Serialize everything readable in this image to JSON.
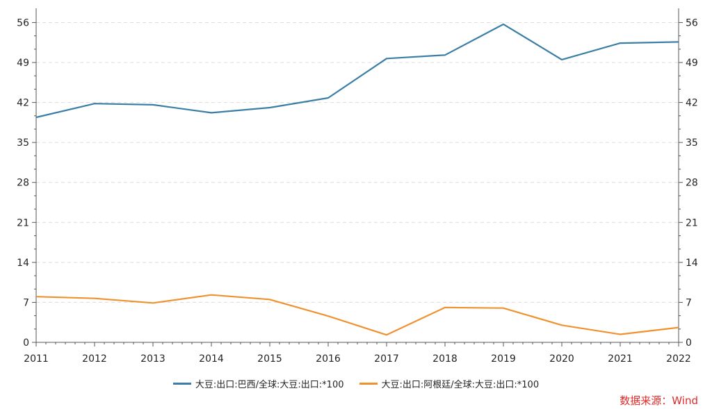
{
  "chart_data": {
    "type": "line",
    "x": [
      "2011",
      "2012",
      "2013",
      "2014",
      "2015",
      "2016",
      "2017",
      "2018",
      "2019",
      "2020",
      "2021",
      "2022"
    ],
    "series": [
      {
        "name": "大豆:出口:巴西/全球:大豆:出口:*100",
        "color": "#3a7ea6",
        "values": [
          39.4,
          41.8,
          41.6,
          40.2,
          41.1,
          42.8,
          49.7,
          50.3,
          55.7,
          49.5,
          52.4,
          52.6
        ]
      },
      {
        "name": "大豆:出口:阿根廷/全球:大豆:出口:*100",
        "color": "#f0912f",
        "values": [
          8.0,
          7.7,
          6.9,
          8.3,
          7.5,
          4.6,
          1.3,
          6.1,
          6.0,
          3.0,
          1.4,
          2.6
        ]
      }
    ],
    "yticks": [
      "0",
      "7",
      "14",
      "21",
      "28",
      "35",
      "42",
      "49",
      "56"
    ],
    "ylim": [
      0,
      58
    ],
    "y_axis_mirrored_right": true,
    "grid": "horizontal-dashed",
    "legend_position": "bottom-center"
  },
  "source_note": "数据来源：Wind"
}
